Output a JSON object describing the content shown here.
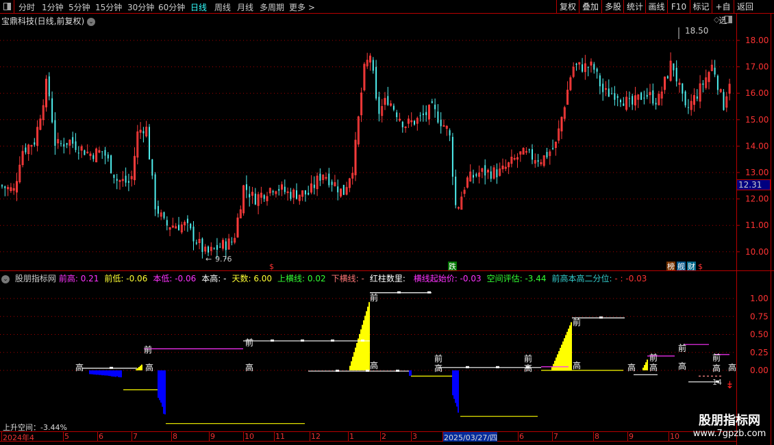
{
  "toolbar": {
    "periods": [
      "分时",
      "1分钟",
      "5分钟",
      "15分钟",
      "30分钟",
      "60分钟",
      "日线",
      "周线",
      "月线",
      "多周期",
      "更多 >"
    ],
    "active": "日线",
    "buttons": [
      "复权",
      "叠加",
      "多股",
      "统计",
      "画线",
      "F10",
      "标记",
      "+自选",
      "返回"
    ]
  },
  "title": "宝鼎科技(日线,前复权)",
  "price_axis": {
    "ticks": [
      "18.00",
      "17.00",
      "16.00",
      "15.00",
      "14.00",
      "13.00",
      "12.00",
      "11.00",
      "10.00"
    ],
    "current": "12.31"
  },
  "annotations": {
    "high": "18.50",
    "low": "9.76",
    "markers": [
      "$",
      "跌",
      "榜",
      "舰",
      "财",
      "$"
    ]
  },
  "colors": {
    "up": "#ff3b3b",
    "down": "#4ff0f0",
    "axis": "#ff3030",
    "border": "#bb0000"
  },
  "price_path": [
    [
      0,
      12.5
    ],
    [
      20,
      12.3
    ],
    [
      30,
      13.8
    ],
    [
      50,
      14.2
    ],
    [
      68,
      16.5
    ],
    [
      80,
      14.0
    ],
    [
      100,
      14.2
    ],
    [
      130,
      13.7
    ],
    [
      150,
      13.8
    ],
    [
      170,
      12.7
    ],
    [
      190,
      12.6
    ],
    [
      200,
      14.5
    ],
    [
      212,
      14.8
    ],
    [
      225,
      11.8
    ],
    [
      240,
      11.0
    ],
    [
      270,
      11.0
    ],
    [
      300,
      9.9
    ],
    [
      320,
      10.2
    ],
    [
      340,
      10.4
    ],
    [
      355,
      12.5
    ],
    [
      370,
      12.0
    ],
    [
      400,
      12.5
    ],
    [
      420,
      12.2
    ],
    [
      450,
      12.2
    ],
    [
      470,
      13.0
    ],
    [
      490,
      12.5
    ],
    [
      500,
      12.2
    ],
    [
      515,
      13.3
    ],
    [
      530,
      16.8
    ],
    [
      540,
      17.5
    ],
    [
      550,
      15.2
    ],
    [
      565,
      15.8
    ],
    [
      590,
      14.8
    ],
    [
      610,
      15.0
    ],
    [
      630,
      15.4
    ],
    [
      655,
      14.5
    ],
    [
      665,
      11.5
    ],
    [
      680,
      12.7
    ],
    [
      700,
      13.0
    ],
    [
      730,
      13.0
    ],
    [
      760,
      13.7
    ],
    [
      790,
      13.5
    ],
    [
      810,
      14.0
    ],
    [
      820,
      15.2
    ],
    [
      835,
      17.0
    ],
    [
      865,
      17.0
    ],
    [
      880,
      16.0
    ],
    [
      900,
      16.0
    ],
    [
      920,
      15.5
    ],
    [
      940,
      16.0
    ],
    [
      960,
      15.7
    ],
    [
      980,
      17.2
    ],
    [
      1000,
      15.3
    ],
    [
      1020,
      16.1
    ],
    [
      1040,
      17.1
    ],
    [
      1055,
      15.5
    ],
    [
      1066,
      16.7
    ]
  ],
  "indicator": {
    "name": "股朋指标网",
    "fields": [
      {
        "label": "前高: ",
        "value": "0.21",
        "color": "#ff33ff"
      },
      {
        "label": "前低: ",
        "value": "-0.06",
        "color": "#ffff33"
      },
      {
        "label": "本低: ",
        "value": "-0.06",
        "color": "#ff33ff"
      },
      {
        "label": "本高: ",
        "value": "-",
        "color": "#ffffff"
      },
      {
        "label": "天数: ",
        "value": "6.00",
        "color": "#ffff33"
      },
      {
        "label": "上横线: ",
        "value": "0.02",
        "color": "#33ff33"
      },
      {
        "label": "下横线: ",
        "value": "-",
        "color": "#ff7777"
      },
      {
        "label": "红柱数里: ",
        "value": "",
        "color": "#ffffff"
      },
      {
        "label": "横线起始价: ",
        "value": "-0.03",
        "color": "#ff33ff"
      },
      {
        "label": "空间评估: ",
        "value": "-3.44",
        "color": "#33ff33"
      },
      {
        "label": "前高本高二分位: ",
        "value": "- : -0.03",
        "color": "#33cccc"
      }
    ],
    "ticks": [
      "1.00",
      "0.75",
      "0.50",
      "0.25",
      "0.00"
    ],
    "space_label": "上升空间：-3.44%",
    "lines": [
      [
        120,
        200,
        0.03,
        "#fff"
      ],
      [
        210,
        355,
        0.3,
        "#f3f"
      ],
      [
        355,
        540,
        0.41,
        "#fff"
      ],
      [
        540,
        630,
        1.08,
        "#fff"
      ],
      [
        450,
        597,
        -0.01,
        "#fff"
      ],
      [
        600,
        660,
        -0.08,
        "#ff0"
      ],
      [
        672,
        785,
        -0.64,
        "#ff0"
      ],
      [
        640,
        790,
        0.04,
        "#fff"
      ],
      [
        835,
        912,
        0.73,
        "#fff"
      ],
      [
        790,
        910,
        0.0,
        "#ff0"
      ],
      [
        180,
        230,
        -0.27,
        "#ff0"
      ],
      [
        242,
        445,
        -0.74,
        "#ff0"
      ],
      [
        790,
        830,
        0.05,
        "#f3f"
      ],
      [
        945,
        985,
        0.2,
        "#f3f"
      ],
      [
        998,
        1035,
        0.36,
        "#f3f"
      ],
      [
        1043,
        1065,
        0.22,
        "#f3f"
      ],
      [
        925,
        960,
        -0.06,
        "#fff"
      ],
      [
        1005,
        1050,
        -0.16,
        "#fff"
      ],
      [
        1020,
        1055,
        -0.08,
        "#f88"
      ]
    ],
    "bars": [
      [
        130,
        178,
        -0.1,
        "#00f",
        1
      ],
      [
        198,
        208,
        0.08,
        "#ff0",
        1
      ],
      [
        510,
        540,
        0.95,
        "#ff0",
        1
      ],
      [
        660,
        670,
        -0.6,
        "#00f",
        1
      ],
      [
        805,
        835,
        0.67,
        "#ff0",
        1
      ],
      [
        230,
        242,
        -0.66,
        "#00f",
        1
      ],
      [
        938,
        946,
        0.15,
        "#ff0",
        1
      ],
      [
        597,
        600,
        -0.08,
        "#00f",
        0
      ]
    ],
    "labels": [
      [
        110,
        0.0,
        "高"
      ],
      [
        212,
        0.0,
        "高"
      ],
      [
        358,
        0.0,
        "高"
      ],
      [
        210,
        0.25,
        "前"
      ],
      [
        358,
        0.35,
        "前"
      ],
      [
        540,
        0.03,
        "高"
      ],
      [
        540,
        0.97,
        "前"
      ],
      [
        634,
        0.05,
        "前"
      ],
      [
        634,
        -0.01,
        "高"
      ],
      [
        765,
        0.04,
        "前"
      ],
      [
        765,
        -0.01,
        "高"
      ],
      [
        836,
        0.63,
        "前"
      ],
      [
        836,
        0.03,
        "高"
      ],
      [
        916,
        0.0,
        "高"
      ],
      [
        948,
        0.14,
        "前"
      ],
      [
        948,
        0.0,
        "高"
      ],
      [
        990,
        0.27,
        "前"
      ],
      [
        990,
        0.02,
        "高"
      ],
      [
        1040,
        0.14,
        "前"
      ],
      [
        1040,
        -0.01,
        "高"
      ],
      [
        1063,
        0.0,
        "高"
      ]
    ]
  },
  "dates": [
    "2024年4",
    "5",
    "6",
    "7",
    "8",
    "9",
    "10",
    "11",
    "12",
    "1",
    "2",
    "3",
    "2025/03/27/四",
    "6",
    "7",
    "8",
    "9",
    "10"
  ],
  "watermark": {
    "name": "股朋指标网",
    "url": "www.7gpzb.com"
  }
}
